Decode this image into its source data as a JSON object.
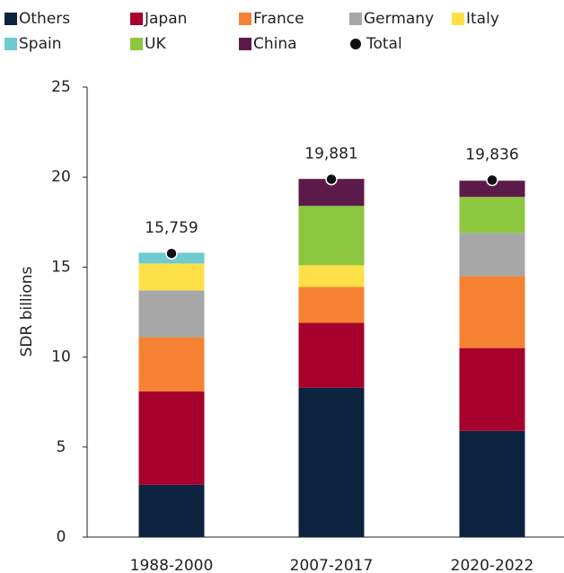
{
  "chart_data": {
    "type": "stacked_bar",
    "categories": [
      "1988-2000",
      "2007-2017",
      "2020-2022"
    ],
    "y_label": "SDR billions",
    "ylim": [
      0,
      25
    ],
    "yticks": [
      0,
      5,
      10,
      15,
      20,
      25
    ],
    "series": [
      {
        "name": "Others",
        "color": "#0c2340",
        "values": [
          2.9,
          8.3,
          5.9
        ]
      },
      {
        "name": "Japan",
        "color": "#a6002c",
        "values": [
          5.2,
          3.6,
          4.6
        ]
      },
      {
        "name": "France",
        "color": "#f58233",
        "values": [
          3.0,
          2.0,
          4.0
        ]
      },
      {
        "name": "Germany",
        "color": "#a7a7a7",
        "values": [
          2.6,
          0,
          2.4
        ]
      },
      {
        "name": "Italy",
        "color": "#fde047",
        "values": [
          1.5,
          1.2,
          0
        ]
      },
      {
        "name": "Spain",
        "color": "#6dcbd1",
        "values": [
          0.6,
          0,
          0
        ]
      },
      {
        "name": "UK",
        "color": "#8dc63f",
        "values": [
          0,
          3.3,
          2.0
        ]
      },
      {
        "name": "China",
        "color": "#5c1a4a",
        "values": [
          0,
          1.5,
          0.9
        ]
      }
    ],
    "total": {
      "name": "Total",
      "color": "#111111",
      "values": [
        15.759,
        19.881,
        19.836
      ],
      "value_labels": [
        "15,759",
        "19,881",
        "19,836"
      ]
    }
  }
}
